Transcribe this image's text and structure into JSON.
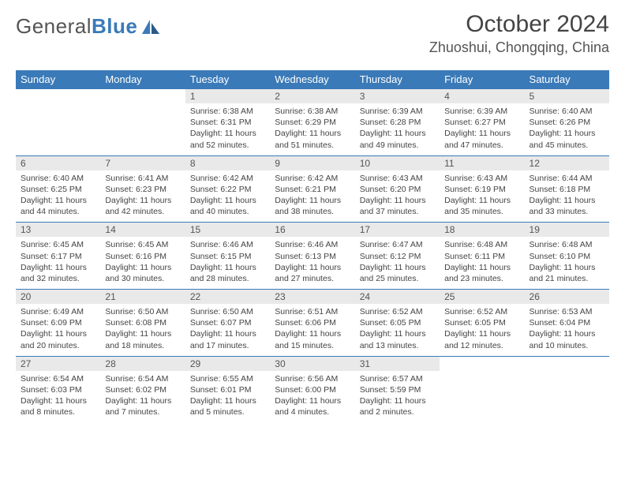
{
  "logo": {
    "part1": "General",
    "part2": "Blue"
  },
  "title": "October 2024",
  "location": "Zhuoshui, Chongqing, China",
  "colors": {
    "header_bg": "#3a7ab8",
    "header_text": "#ffffff",
    "daynum_bg": "#e9e9e9",
    "border": "#3a7ab8",
    "text": "#444444",
    "background": "#ffffff"
  },
  "weekdays": [
    "Sunday",
    "Monday",
    "Tuesday",
    "Wednesday",
    "Thursday",
    "Friday",
    "Saturday"
  ],
  "first_weekday_index": 2,
  "days": [
    {
      "n": 1,
      "sr": "6:38 AM",
      "ss": "6:31 PM",
      "dl": "11 hours and 52 minutes."
    },
    {
      "n": 2,
      "sr": "6:38 AM",
      "ss": "6:29 PM",
      "dl": "11 hours and 51 minutes."
    },
    {
      "n": 3,
      "sr": "6:39 AM",
      "ss": "6:28 PM",
      "dl": "11 hours and 49 minutes."
    },
    {
      "n": 4,
      "sr": "6:39 AM",
      "ss": "6:27 PM",
      "dl": "11 hours and 47 minutes."
    },
    {
      "n": 5,
      "sr": "6:40 AM",
      "ss": "6:26 PM",
      "dl": "11 hours and 45 minutes."
    },
    {
      "n": 6,
      "sr": "6:40 AM",
      "ss": "6:25 PM",
      "dl": "11 hours and 44 minutes."
    },
    {
      "n": 7,
      "sr": "6:41 AM",
      "ss": "6:23 PM",
      "dl": "11 hours and 42 minutes."
    },
    {
      "n": 8,
      "sr": "6:42 AM",
      "ss": "6:22 PM",
      "dl": "11 hours and 40 minutes."
    },
    {
      "n": 9,
      "sr": "6:42 AM",
      "ss": "6:21 PM",
      "dl": "11 hours and 38 minutes."
    },
    {
      "n": 10,
      "sr": "6:43 AM",
      "ss": "6:20 PM",
      "dl": "11 hours and 37 minutes."
    },
    {
      "n": 11,
      "sr": "6:43 AM",
      "ss": "6:19 PM",
      "dl": "11 hours and 35 minutes."
    },
    {
      "n": 12,
      "sr": "6:44 AM",
      "ss": "6:18 PM",
      "dl": "11 hours and 33 minutes."
    },
    {
      "n": 13,
      "sr": "6:45 AM",
      "ss": "6:17 PM",
      "dl": "11 hours and 32 minutes."
    },
    {
      "n": 14,
      "sr": "6:45 AM",
      "ss": "6:16 PM",
      "dl": "11 hours and 30 minutes."
    },
    {
      "n": 15,
      "sr": "6:46 AM",
      "ss": "6:15 PM",
      "dl": "11 hours and 28 minutes."
    },
    {
      "n": 16,
      "sr": "6:46 AM",
      "ss": "6:13 PM",
      "dl": "11 hours and 27 minutes."
    },
    {
      "n": 17,
      "sr": "6:47 AM",
      "ss": "6:12 PM",
      "dl": "11 hours and 25 minutes."
    },
    {
      "n": 18,
      "sr": "6:48 AM",
      "ss": "6:11 PM",
      "dl": "11 hours and 23 minutes."
    },
    {
      "n": 19,
      "sr": "6:48 AM",
      "ss": "6:10 PM",
      "dl": "11 hours and 21 minutes."
    },
    {
      "n": 20,
      "sr": "6:49 AM",
      "ss": "6:09 PM",
      "dl": "11 hours and 20 minutes."
    },
    {
      "n": 21,
      "sr": "6:50 AM",
      "ss": "6:08 PM",
      "dl": "11 hours and 18 minutes."
    },
    {
      "n": 22,
      "sr": "6:50 AM",
      "ss": "6:07 PM",
      "dl": "11 hours and 17 minutes."
    },
    {
      "n": 23,
      "sr": "6:51 AM",
      "ss": "6:06 PM",
      "dl": "11 hours and 15 minutes."
    },
    {
      "n": 24,
      "sr": "6:52 AM",
      "ss": "6:05 PM",
      "dl": "11 hours and 13 minutes."
    },
    {
      "n": 25,
      "sr": "6:52 AM",
      "ss": "6:05 PM",
      "dl": "11 hours and 12 minutes."
    },
    {
      "n": 26,
      "sr": "6:53 AM",
      "ss": "6:04 PM",
      "dl": "11 hours and 10 minutes."
    },
    {
      "n": 27,
      "sr": "6:54 AM",
      "ss": "6:03 PM",
      "dl": "11 hours and 8 minutes."
    },
    {
      "n": 28,
      "sr": "6:54 AM",
      "ss": "6:02 PM",
      "dl": "11 hours and 7 minutes."
    },
    {
      "n": 29,
      "sr": "6:55 AM",
      "ss": "6:01 PM",
      "dl": "11 hours and 5 minutes."
    },
    {
      "n": 30,
      "sr": "6:56 AM",
      "ss": "6:00 PM",
      "dl": "11 hours and 4 minutes."
    },
    {
      "n": 31,
      "sr": "6:57 AM",
      "ss": "5:59 PM",
      "dl": "11 hours and 2 minutes."
    }
  ],
  "labels": {
    "sunrise": "Sunrise:",
    "sunset": "Sunset:",
    "daylight": "Daylight:"
  }
}
